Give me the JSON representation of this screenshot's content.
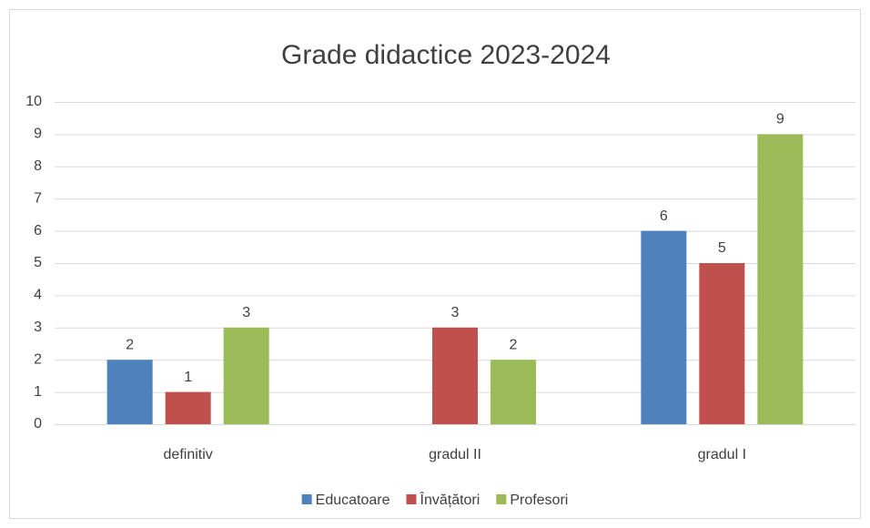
{
  "chart_data": {
    "type": "bar",
    "title": "Grade didactice 2023-2024",
    "categories": [
      "definitiv",
      "gradul II",
      "gradul I"
    ],
    "series": [
      {
        "name": "Educatoare",
        "color": "#4f81bd",
        "values": [
          2,
          null,
          6
        ]
      },
      {
        "name": "Învățători",
        "color": "#c0504d",
        "values": [
          1,
          3,
          5
        ]
      },
      {
        "name": "Profesori",
        "color": "#9bbb59",
        "values": [
          3,
          2,
          9
        ]
      }
    ],
    "ylim": [
      0,
      10
    ],
    "yticks": [
      0,
      1,
      2,
      3,
      4,
      5,
      6,
      7,
      8,
      9,
      10
    ],
    "grid": true,
    "legend": "bottom"
  }
}
